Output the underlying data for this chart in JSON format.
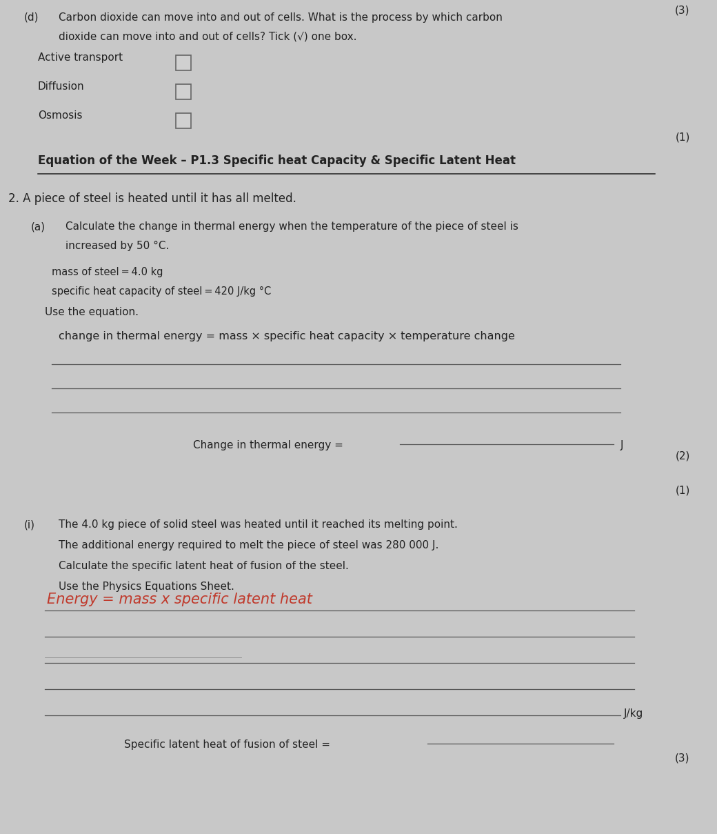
{
  "bg_color": "#c8c8c8",
  "page_color": "#dcdcdc",
  "text_color": "#222222",
  "handwriting_color": "#c0392b",
  "figsize": [
    10.4,
    12.09
  ],
  "dpi": 100,
  "mark_top_right": "(3)",
  "section_d_label": "(d)",
  "section_d_text1": "Carbon dioxide can move into and out of cells. What is the process by which carbon",
  "section_d_text2": "dioxide can move into and out of cells? Tick (√) one box.",
  "options": [
    "Active transport",
    "Diffusion",
    "Osmosis"
  ],
  "mark_after_options": "(1)",
  "heading": "Equation of the Week – P1.3 Specific heat Capacity & Specific Latent Heat",
  "q2_text": "2. A piece of steel is heated until it has all melted.",
  "qa_label": "(a)",
  "qa_text1": "Calculate the change in thermal energy when the temperature of the piece of steel is",
  "qa_text2": "increased by 50 °C.",
  "qa_given1": "mass of steel ═ 4.0 kg",
  "qa_given2": "specific heat capacity of steel ═ 420 J/kg °C",
  "qa_use": "Use the equation.",
  "qa_equation": "change in thermal energy = mass × specific heat capacity × temperature change",
  "answer_line1_label": "Change in thermal energy =",
  "answer_line1_unit": "J",
  "mark_after_qa": "(2)",
  "mark_after_qa2": "(1)",
  "qi_label": "(i)",
  "qi_text1": "The 4.0 kg piece of solid steel was heated until it reached its melting point.",
  "qi_text2": "The additional energy required to melt the piece of steel was 280 000 J.",
  "qi_text3": "Calculate the specific latent heat of fusion of the steel.",
  "qi_use": "Use the Physics Equations Sheet.",
  "handwriting_text": "Energy = mass x specific latent heat",
  "answer_line2_label": "Specific latent heat of fusion of steel =",
  "answer_line2_unit": "J/kg",
  "mark_final": "(3)"
}
